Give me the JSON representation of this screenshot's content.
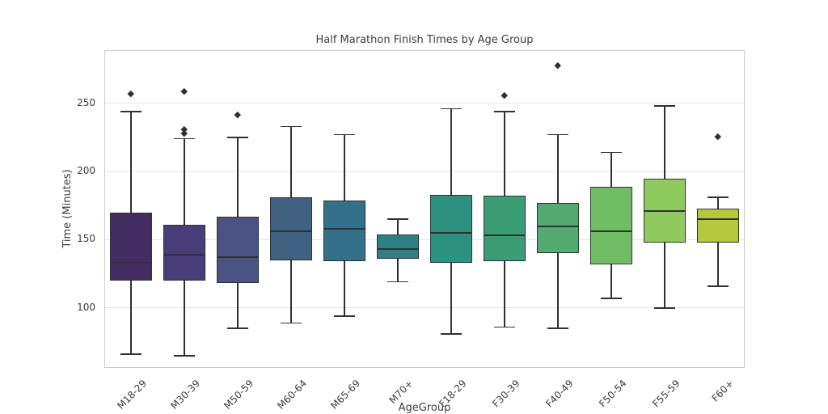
{
  "chart_data": {
    "type": "box",
    "title": "Half Marathon Finish Times by Age Group",
    "xlabel": "AgeGroup",
    "ylabel": "Time (Minutes)",
    "ylim": [
      56,
      289
    ],
    "yticks": [
      100,
      150,
      200,
      250
    ],
    "grid": "horizontal gridlines only",
    "legend_position": "none",
    "categories": [
      "M18-29",
      "M30-39",
      "M50-59",
      "M60-64",
      "M65-69",
      "M70+",
      "F18-29",
      "F30-39",
      "F40-49",
      "F50-54",
      "F55-59",
      "F60+"
    ],
    "boxes": [
      {
        "label": "M18-29",
        "whislo": 66,
        "q1": 120,
        "med": 133,
        "q3": 170,
        "whishi": 244,
        "fliers": [
          257
        ],
        "color": "#432c61"
      },
      {
        "label": "M30-39",
        "whislo": 65,
        "q1": 120,
        "med": 139,
        "q3": 161,
        "whishi": 224,
        "fliers": [
          228,
          231,
          259
        ],
        "color": "#483d78"
      },
      {
        "label": "M50-59",
        "whislo": 85,
        "q1": 118,
        "med": 137,
        "q3": 167,
        "whishi": 225,
        "fliers": [
          242
        ],
        "color": "#495280"
      },
      {
        "label": "M60-64",
        "whislo": 89,
        "q1": 135,
        "med": 156,
        "q3": 181,
        "whishi": 233,
        "fliers": [],
        "color": "#406181"
      },
      {
        "label": "M65-69",
        "whislo": 94,
        "q1": 134,
        "med": 158,
        "q3": 179,
        "whishi": 227,
        "fliers": [],
        "color": "#35708a"
      },
      {
        "label": "M70+",
        "whislo": 119,
        "q1": 136,
        "med": 143,
        "q3": 154,
        "whishi": 165,
        "fliers": [],
        "color": "#2f8084"
      },
      {
        "label": "F18-29",
        "whislo": 81,
        "q1": 133,
        "med": 155,
        "q3": 183,
        "whishi": 246,
        "fliers": [],
        "color": "#2d9180"
      },
      {
        "label": "F30-39",
        "whislo": 86,
        "q1": 134,
        "med": 153,
        "q3": 182,
        "whishi": 244,
        "fliers": [
          256
        ],
        "color": "#3b9d73"
      },
      {
        "label": "F40-49",
        "whislo": 85,
        "q1": 140,
        "med": 160,
        "q3": 177,
        "whishi": 227,
        "fliers": [
          278
        ],
        "color": "#54ab72"
      },
      {
        "label": "F50-54",
        "whislo": 107,
        "q1": 132,
        "med": 156,
        "q3": 189,
        "whishi": 214,
        "fliers": [],
        "color": "#71bd63"
      },
      {
        "label": "F55-59",
        "whislo": 100,
        "q1": 148,
        "med": 171,
        "q3": 195,
        "whishi": 248,
        "fliers": [],
        "color": "#90ca5f"
      },
      {
        "label": "F60+",
        "whislo": 116,
        "q1": 148,
        "med": 165,
        "q3": 173,
        "whishi": 181,
        "fliers": [
          226
        ],
        "color": "#b4c83b"
      }
    ]
  },
  "style": {
    "edge_color": "#303030",
    "flier_color": "#2f2f2f",
    "grid_color": "#e5e5e5",
    "spine_color": "#cccccc",
    "text_color": "#3d3d3d",
    "background": "#ffffff"
  }
}
